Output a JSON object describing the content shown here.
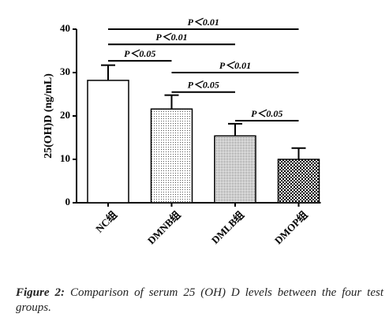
{
  "chart_data": {
    "type": "bar",
    "y_label": "25(OH)D (ng/mL)",
    "categories": [
      "NC组",
      "DMNB组",
      "DMLB组",
      "DMOP组"
    ],
    "values": [
      28.2,
      21.6,
      15.4,
      10.0
    ],
    "errors": [
      3.5,
      3.2,
      2.8,
      2.6
    ],
    "patterns": [
      "none",
      "fine-dots",
      "dots",
      "checker"
    ],
    "color": "#000000",
    "ylim": [
      0,
      40
    ],
    "yticks": [
      0,
      10,
      20,
      30,
      40
    ],
    "brackets": [
      {
        "from": 0,
        "to": 3,
        "level": 40,
        "text": "P＜0.01"
      },
      {
        "from": 0,
        "to": 2,
        "level": 36.5,
        "text": "P＜0.01"
      },
      {
        "from": 0,
        "to": 1,
        "level": 32.7,
        "text": "P＜0.05"
      },
      {
        "from": 1,
        "to": 3,
        "level": 30,
        "text": "P＜0.01"
      },
      {
        "from": 1,
        "to": 2,
        "level": 25.5,
        "text": "P＜0.05"
      },
      {
        "from": 2,
        "to": 3,
        "level": 18.9,
        "text": "P＜0.05"
      }
    ]
  },
  "caption": {
    "label": "Figure 2:",
    "text": "Comparison of serum 25 (OH) D levels between the four test groups."
  }
}
